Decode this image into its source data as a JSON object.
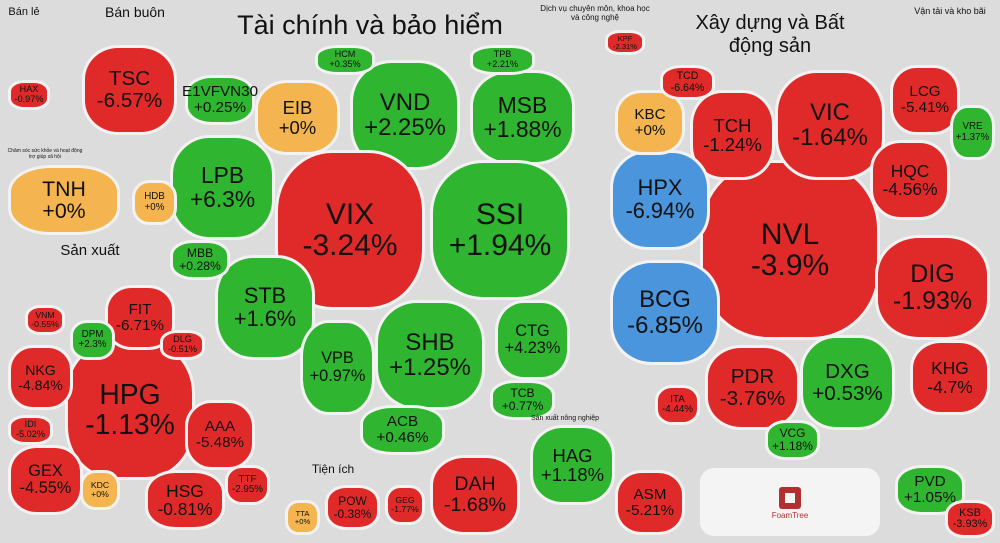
{
  "logo": "FoamTree",
  "sectors": [
    {
      "name": "Bán lẻ",
      "stocks": [
        {
          "ticker": "HAX",
          "change": "-0.97%"
        }
      ]
    },
    {
      "name": "Bán buôn",
      "stocks": [
        {
          "ticker": "TSC",
          "change": "-6.57%"
        }
      ]
    },
    {
      "name": "Chăm sóc sức khỏe và hoạt động trợ giúp xã hội",
      "stocks": [
        {
          "ticker": "TNH",
          "change": "+0%"
        }
      ]
    },
    {
      "name": "Tài chính và bảo hiểm",
      "stocks": [
        {
          "ticker": "VND",
          "change": "+2.25%"
        },
        {
          "ticker": "MSB",
          "change": "+1.88%"
        },
        {
          "ticker": "EIB",
          "change": "+0%"
        },
        {
          "ticker": "LPB",
          "change": "+6.3%"
        },
        {
          "ticker": "VIX",
          "change": "-3.24%"
        },
        {
          "ticker": "SSI",
          "change": "+1.94%"
        },
        {
          "ticker": "STB",
          "change": "+1.6%"
        },
        {
          "ticker": "SHB",
          "change": "+1.25%"
        },
        {
          "ticker": "VPB",
          "change": "+0.97%"
        },
        {
          "ticker": "CTG",
          "change": "+4.23%"
        },
        {
          "ticker": "ACB",
          "change": "+0.46%"
        },
        {
          "ticker": "E1VFVN30",
          "change": "+0.25%"
        },
        {
          "ticker": "HCM",
          "change": "+0.35%"
        },
        {
          "ticker": "TPB",
          "change": "+2.21%"
        },
        {
          "ticker": "MBB",
          "change": "+0.28%"
        },
        {
          "ticker": "TCB",
          "change": "+0.77%"
        },
        {
          "ticker": "HDB",
          "change": "+0%"
        }
      ]
    },
    {
      "name": "Dịch vụ chuyên môn, khoa học và công nghệ",
      "stocks": [
        {
          "ticker": "KPF",
          "change": "-2.31%"
        }
      ]
    },
    {
      "name": "Xây dựng và Bất động sản",
      "stocks": [
        {
          "ticker": "NVL",
          "change": "-3.9%"
        },
        {
          "ticker": "VIC",
          "change": "-1.64%"
        },
        {
          "ticker": "TCH",
          "change": "-1.24%"
        },
        {
          "ticker": "HPX",
          "change": "-6.94%",
          "color": "#4a95dc"
        },
        {
          "ticker": "BCG",
          "change": "-6.85%",
          "color": "#4a95dc"
        },
        {
          "ticker": "KBC",
          "change": "+0%"
        },
        {
          "ticker": "HQC",
          "change": "-4.56%"
        },
        {
          "ticker": "LCG",
          "change": "-5.41%"
        },
        {
          "ticker": "VRE",
          "change": "+1.37%"
        },
        {
          "ticker": "DIG",
          "change": "-1.93%"
        },
        {
          "ticker": "PDR",
          "change": "-3.76%"
        },
        {
          "ticker": "DXG",
          "change": "+0.53%"
        },
        {
          "ticker": "KHG",
          "change": "-4.7%"
        },
        {
          "ticker": "TCD",
          "change": "-6.64%"
        },
        {
          "ticker": "ITA",
          "change": "-4.44%"
        },
        {
          "ticker": "VCG",
          "change": "+1.18%"
        }
      ]
    },
    {
      "name": "Vận tải và kho bãi",
      "stocks": [
        {
          "ticker": "PVD",
          "change": "+1.05%"
        },
        {
          "ticker": "KSB",
          "change": "-3.93%"
        }
      ]
    },
    {
      "name": "Sản xuất",
      "stocks": [
        {
          "ticker": "HPG",
          "change": "-1.13%"
        },
        {
          "ticker": "NKG",
          "change": "-4.84%"
        },
        {
          "ticker": "FIT",
          "change": "-6.71%"
        },
        {
          "ticker": "DPM",
          "change": "+2.3%"
        },
        {
          "ticker": "AAA",
          "change": "-5.48%"
        },
        {
          "ticker": "GEX",
          "change": "-4.55%"
        },
        {
          "ticker": "HSG",
          "change": "-0.81%"
        },
        {
          "ticker": "KDC",
          "change": "+0%"
        },
        {
          "ticker": "TTF",
          "change": "-2.95%"
        },
        {
          "ticker": "IDI",
          "change": "-5.02%"
        },
        {
          "ticker": "VNM",
          "change": "-0.55%"
        },
        {
          "ticker": "DLG",
          "change": "-0.51%"
        }
      ]
    },
    {
      "name": "Tiện ích",
      "stocks": [
        {
          "ticker": "POW",
          "change": "-0.38%"
        },
        {
          "ticker": "GEG",
          "change": "-1.77%"
        },
        {
          "ticker": "TTA",
          "change": "+0%"
        }
      ]
    },
    {
      "name": "Sản xuất nông nghiệp",
      "stocks": [
        {
          "ticker": "HAG",
          "change": "+1.18%"
        },
        {
          "ticker": "ASM",
          "change": "-5.21%"
        }
      ]
    }
  ],
  "ungrouped": [
    {
      "ticker": "DAH",
      "change": "-1.68%"
    }
  ]
}
